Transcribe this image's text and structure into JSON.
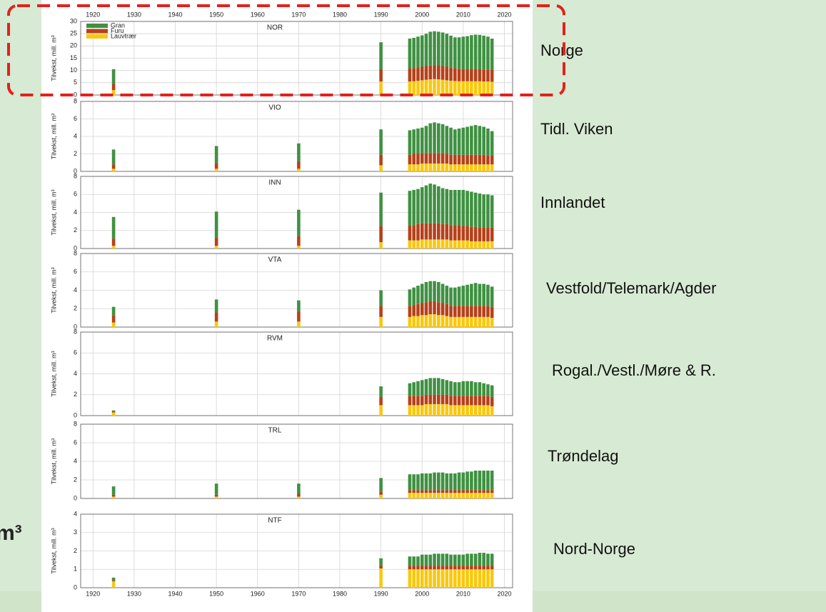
{
  "slide_text": "m³",
  "chart_data": [
    {
      "type": "bar",
      "stacked": true,
      "title": "NOR",
      "region": "Norge",
      "ylabel": "Tilvekst, mill. m³",
      "legend": "upper left",
      "x": [
        1925,
        1950,
        1970,
        1990,
        1997,
        1998,
        1999,
        2000,
        2001,
        2002,
        2003,
        2004,
        2005,
        2006,
        2007,
        2008,
        2009,
        2010,
        2011,
        2012,
        2013,
        2014,
        2015,
        2016,
        2017
      ],
      "xlim": [
        1917,
        2022
      ],
      "xticks": [
        1920,
        1930,
        1940,
        1950,
        1960,
        1970,
        1980,
        1990,
        2000,
        2010,
        2020
      ],
      "ylim": [
        0,
        30
      ],
      "yticks": [
        0,
        5,
        10,
        15,
        20,
        25,
        30
      ],
      "grid": true,
      "series": [
        {
          "name": "Gran",
          "color": "#3f9142",
          "values": [
            6,
            null,
            null,
            11,
            12.2,
            12.4,
            12.6,
            12.8,
            13.2,
            13.8,
            13.8,
            13.7,
            13.7,
            13.5,
            13.1,
            12.6,
            12.8,
            13.2,
            13.4,
            13.8,
            14,
            14,
            13.8,
            13.5,
            12.8
          ]
        },
        {
          "name": "Furu",
          "color": "#b5411a",
          "values": [
            2.5,
            null,
            null,
            5,
            5.3,
            5.3,
            5.4,
            5.5,
            5.6,
            5.6,
            5.7,
            5.7,
            5.6,
            5.5,
            5.3,
            5.2,
            5.1,
            5,
            5,
            5,
            5,
            4.9,
            4.9,
            4.8,
            4.8
          ]
        },
        {
          "name": "Lauvtrær",
          "color": "#f9c80e",
          "values": [
            2,
            null,
            null,
            5.5,
            5.5,
            5.6,
            5.8,
            6,
            6.2,
            6.4,
            6.5,
            6.4,
            6.2,
            6,
            5.8,
            5.7,
            5.6,
            5.6,
            5.6,
            5.6,
            5.6,
            5.6,
            5.5,
            5.5,
            5.4
          ]
        }
      ]
    },
    {
      "type": "bar",
      "stacked": true,
      "title": "VIO",
      "region": "Tidl. Viken",
      "ylabel": "Tilvekst, mill. m³",
      "x": [
        1925,
        1950,
        1970,
        1990,
        1997,
        1998,
        1999,
        2000,
        2001,
        2002,
        2003,
        2004,
        2005,
        2006,
        2007,
        2008,
        2009,
        2010,
        2011,
        2012,
        2013,
        2014,
        2015,
        2016,
        2017
      ],
      "xlim": [
        1917,
        2022
      ],
      "xticks": [
        1920,
        1930,
        1940,
        1950,
        1960,
        1970,
        1980,
        1990,
        2000,
        2010,
        2020
      ],
      "ylim": [
        0,
        8
      ],
      "yticks": [
        0,
        2,
        4,
        6,
        8
      ],
      "grid": true,
      "series": [
        {
          "color": "#3f9142",
          "values": [
            1.7,
            2,
            2.1,
            2.9,
            2.8,
            2.8,
            2.9,
            2.9,
            3.1,
            3.4,
            3.5,
            3.4,
            3.3,
            3.2,
            3.1,
            2.9,
            3,
            3.1,
            3.2,
            3.3,
            3.4,
            3.3,
            3.2,
            3.1,
            2.8
          ]
        },
        {
          "color": "#b5411a",
          "values": [
            0.5,
            0.6,
            0.8,
            1.2,
            1.1,
            1.2,
            1.2,
            1.2,
            1.2,
            1.2,
            1.2,
            1.2,
            1.2,
            1.1,
            1.1,
            1.1,
            1.1,
            1.1,
            1.1,
            1.1,
            1.1,
            1.1,
            1.1,
            1,
            1
          ]
        },
        {
          "color": "#f9c80e",
          "values": [
            0.3,
            0.3,
            0.3,
            0.7,
            0.8,
            0.8,
            0.8,
            0.9,
            0.9,
            0.9,
            0.9,
            0.9,
            0.9,
            0.9,
            0.8,
            0.8,
            0.8,
            0.8,
            0.8,
            0.8,
            0.8,
            0.8,
            0.8,
            0.8,
            0.8
          ]
        }
      ]
    },
    {
      "type": "bar",
      "stacked": true,
      "title": "INN",
      "region": "Innlandet",
      "ylabel": "Tilvekst, mill. m³",
      "x": [
        1925,
        1950,
        1970,
        1990,
        1997,
        1998,
        1999,
        2000,
        2001,
        2002,
        2003,
        2004,
        2005,
        2006,
        2007,
        2008,
        2009,
        2010,
        2011,
        2012,
        2013,
        2014,
        2015,
        2016,
        2017
      ],
      "xlim": [
        1917,
        2022
      ],
      "xticks": [
        1920,
        1930,
        1940,
        1950,
        1960,
        1970,
        1980,
        1990,
        2000,
        2010,
        2020
      ],
      "ylim": [
        0,
        8
      ],
      "yticks": [
        0,
        2,
        4,
        6,
        8
      ],
      "grid": true,
      "series": [
        {
          "color": "#3f9142",
          "values": [
            2.4,
            2.9,
            2.9,
            3.7,
            3.8,
            3.9,
            3.9,
            4,
            4.2,
            4.4,
            4.3,
            4.1,
            4,
            3.9,
            3.9,
            3.9,
            3.9,
            4,
            3.9,
            3.9,
            3.8,
            3.8,
            3.7,
            3.7,
            3.6
          ]
        },
        {
          "color": "#b5411a",
          "values": [
            0.8,
            0.9,
            1.1,
            1.8,
            1.7,
            1.7,
            1.8,
            1.8,
            1.8,
            1.8,
            1.8,
            1.8,
            1.7,
            1.7,
            1.7,
            1.7,
            1.7,
            1.6,
            1.6,
            1.6,
            1.6,
            1.5,
            1.5,
            1.5,
            1.5
          ]
        },
        {
          "color": "#f9c80e",
          "values": [
            0.3,
            0.3,
            0.3,
            0.7,
            0.9,
            0.9,
            0.9,
            1,
            1,
            1,
            1,
            1,
            1,
            1,
            0.9,
            0.9,
            0.9,
            0.9,
            0.9,
            0.8,
            0.8,
            0.8,
            0.8,
            0.8,
            0.8
          ]
        }
      ]
    },
    {
      "type": "bar",
      "stacked": true,
      "title": "VTA",
      "region": "Vestfold/Telemark/Agder",
      "ylabel": "Tilvekst, mill. m³",
      "x": [
        1925,
        1950,
        1970,
        1990,
        1997,
        1998,
        1999,
        2000,
        2001,
        2002,
        2003,
        2004,
        2005,
        2006,
        2007,
        2008,
        2009,
        2010,
        2011,
        2012,
        2013,
        2014,
        2015,
        2016,
        2017
      ],
      "xlim": [
        1917,
        2022
      ],
      "xticks": [
        1920,
        1930,
        1940,
        1950,
        1960,
        1970,
        1980,
        1990,
        2000,
        2010,
        2020
      ],
      "ylim": [
        0,
        8
      ],
      "yticks": [
        0,
        2,
        4,
        6,
        8
      ],
      "grid": true,
      "series": [
        {
          "color": "#3f9142",
          "values": [
            0.9,
            1.4,
            1.2,
            1.7,
            1.8,
            1.9,
            2,
            2.1,
            2.2,
            2.2,
            2.2,
            2.2,
            2.1,
            2,
            2,
            2,
            2.1,
            2.2,
            2.3,
            2.4,
            2.5,
            2.4,
            2.4,
            2.3,
            2.2
          ]
        },
        {
          "color": "#b5411a",
          "values": [
            0.8,
            1,
            1.1,
            1.2,
            1.2,
            1.2,
            1.3,
            1.3,
            1.4,
            1.4,
            1.4,
            1.4,
            1.3,
            1.3,
            1.2,
            1.2,
            1.2,
            1.2,
            1.2,
            1.2,
            1.2,
            1.2,
            1.2,
            1.2,
            1.2
          ]
        },
        {
          "color": "#f9c80e",
          "values": [
            0.5,
            0.6,
            0.6,
            1.1,
            1.1,
            1.2,
            1.2,
            1.3,
            1.3,
            1.4,
            1.4,
            1.3,
            1.3,
            1.2,
            1.1,
            1.1,
            1.1,
            1.1,
            1.1,
            1.1,
            1.1,
            1.1,
            1.1,
            1.1,
            1
          ]
        }
      ]
    },
    {
      "type": "bar",
      "stacked": true,
      "title": "RVM",
      "region": "Rogal./Vestl./Møre & R.",
      "ylabel": "Tilvekst, mill. m³",
      "x": [
        1925,
        1950,
        1970,
        1990,
        1997,
        1998,
        1999,
        2000,
        2001,
        2002,
        2003,
        2004,
        2005,
        2006,
        2007,
        2008,
        2009,
        2010,
        2011,
        2012,
        2013,
        2014,
        2015,
        2016,
        2017
      ],
      "xlim": [
        1917,
        2022
      ],
      "xticks": [
        1920,
        1930,
        1940,
        1950,
        1960,
        1970,
        1980,
        1990,
        2000,
        2010,
        2020
      ],
      "ylim": [
        0,
        8
      ],
      "yticks": [
        0,
        2,
        4,
        6,
        8
      ],
      "grid": true,
      "series": [
        {
          "color": "#3f9142",
          "values": [
            0.1,
            null,
            null,
            1,
            1.2,
            1.3,
            1.4,
            1.5,
            1.5,
            1.6,
            1.6,
            1.6,
            1.5,
            1.4,
            1.4,
            1.3,
            1.3,
            1.4,
            1.4,
            1.4,
            1.3,
            1.3,
            1.2,
            1.1,
            1.1
          ]
        },
        {
          "color": "#b5411a",
          "values": [
            0.1,
            null,
            null,
            0.8,
            0.9,
            0.9,
            0.9,
            0.9,
            0.9,
            0.9,
            0.9,
            0.9,
            0.9,
            0.9,
            0.9,
            0.9,
            0.9,
            0.9,
            0.9,
            0.9,
            0.9,
            0.9,
            0.9,
            0.9,
            0.9
          ]
        },
        {
          "color": "#f9c80e",
          "values": [
            0.3,
            null,
            null,
            1,
            1,
            1,
            1,
            1,
            1.1,
            1.1,
            1.1,
            1.1,
            1.1,
            1.1,
            1,
            1,
            1,
            1,
            1,
            1,
            1,
            1,
            1,
            1,
            0.9
          ]
        }
      ]
    },
    {
      "type": "bar",
      "stacked": true,
      "title": "TRL",
      "region": "Trøndelag",
      "ylabel": "Tilvekst, mill. m³",
      "x": [
        1925,
        1950,
        1970,
        1990,
        1997,
        1998,
        1999,
        2000,
        2001,
        2002,
        2003,
        2004,
        2005,
        2006,
        2007,
        2008,
        2009,
        2010,
        2011,
        2012,
        2013,
        2014,
        2015,
        2016,
        2017
      ],
      "xlim": [
        1917,
        2022
      ],
      "xticks": [
        1920,
        1930,
        1940,
        1950,
        1960,
        1970,
        1980,
        1990,
        2000,
        2010,
        2020
      ],
      "ylim": [
        0,
        8
      ],
      "yticks": [
        0,
        2,
        4,
        6,
        8
      ],
      "grid": true,
      "series": [
        {
          "color": "#3f9142",
          "values": [
            0.9,
            1.2,
            1.1,
            1.5,
            1.7,
            1.7,
            1.7,
            1.8,
            1.8,
            1.8,
            1.9,
            1.9,
            1.9,
            1.8,
            1.8,
            1.8,
            1.9,
            1.9,
            2,
            2,
            2.1,
            2.1,
            2.1,
            2.1,
            2.1
          ]
        },
        {
          "color": "#b5411a",
          "values": [
            0.2,
            0.2,
            0.3,
            0.3,
            0.3,
            0.3,
            0.3,
            0.3,
            0.3,
            0.3,
            0.3,
            0.3,
            0.3,
            0.3,
            0.3,
            0.3,
            0.3,
            0.3,
            0.3,
            0.3,
            0.3,
            0.3,
            0.3,
            0.3,
            0.3
          ]
        },
        {
          "color": "#f9c80e",
          "values": [
            0.2,
            0.2,
            0.2,
            0.4,
            0.6,
            0.6,
            0.6,
            0.6,
            0.6,
            0.6,
            0.6,
            0.6,
            0.6,
            0.6,
            0.6,
            0.6,
            0.6,
            0.6,
            0.6,
            0.6,
            0.6,
            0.6,
            0.6,
            0.6,
            0.6
          ]
        }
      ]
    },
    {
      "type": "bar",
      "stacked": true,
      "title": "NTF",
      "region": "Nord-Norge",
      "ylabel": "Tilvekst, mill. m³",
      "x": [
        1925,
        1950,
        1970,
        1990,
        1997,
        1998,
        1999,
        2000,
        2001,
        2002,
        2003,
        2004,
        2005,
        2006,
        2007,
        2008,
        2009,
        2010,
        2011,
        2012,
        2013,
        2014,
        2015,
        2016,
        2017
      ],
      "xlim": [
        1917,
        2022
      ],
      "xticks": [
        1920,
        1930,
        1940,
        1950,
        1960,
        1970,
        1980,
        1990,
        2000,
        2010,
        2020
      ],
      "ylim": [
        0,
        4
      ],
      "yticks": [
        0,
        1,
        2,
        3,
        4
      ],
      "grid": true,
      "series": [
        {
          "color": "#3f9142",
          "values": [
            0.15,
            null,
            null,
            0.4,
            0.5,
            0.5,
            0.5,
            0.6,
            0.6,
            0.6,
            0.65,
            0.65,
            0.65,
            0.65,
            0.6,
            0.6,
            0.6,
            0.6,
            0.65,
            0.65,
            0.65,
            0.7,
            0.7,
            0.65,
            0.65
          ]
        },
        {
          "color": "#b5411a",
          "values": [
            0.05,
            null,
            null,
            0.15,
            0.2,
            0.2,
            0.2,
            0.2,
            0.2,
            0.2,
            0.2,
            0.2,
            0.2,
            0.2,
            0.2,
            0.2,
            0.2,
            0.2,
            0.2,
            0.2,
            0.2,
            0.2,
            0.2,
            0.2,
            0.2
          ]
        },
        {
          "color": "#f9c80e",
          "values": [
            0.35,
            null,
            null,
            1.05,
            1,
            1,
            1,
            1,
            1,
            1,
            1,
            1,
            1,
            1,
            1,
            1,
            1,
            1,
            1,
            1,
            1,
            1,
            1,
            1,
            1
          ]
        }
      ]
    }
  ]
}
